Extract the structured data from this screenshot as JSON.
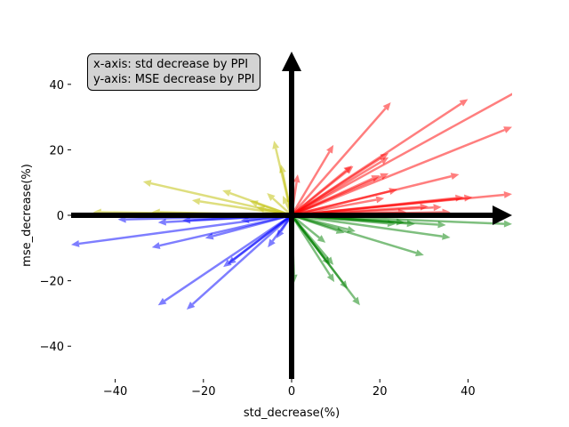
{
  "chart_data": {
    "type": "quiver",
    "xlabel": "std_decrease(%)",
    "ylabel": "mse_decrease(%)",
    "xlim": [
      -50,
      50
    ],
    "ylim": [
      -50,
      50
    ],
    "xticks": [
      -40,
      -20,
      0,
      20,
      40
    ],
    "yticks": [
      -40,
      -20,
      0,
      20,
      40
    ],
    "grid": false,
    "annotation": [
      "x-axis: std decrease by PPI",
      "y-axis: MSE decrease by PPI"
    ],
    "colors": {
      "red": "#ff0000",
      "green": "#008000",
      "yellow": "#bfbf00",
      "blue": "#0000ff",
      "axis": "#000000"
    },
    "series": [
      {
        "name": "red",
        "color": "#ff0000",
        "vectors": [
          [
            1.4,
            12.5
          ],
          [
            9.5,
            21.5
          ],
          [
            22.5,
            34.5
          ],
          [
            40,
            35.5
          ],
          [
            52,
            38.5
          ],
          [
            50,
            27
          ],
          [
            38,
            12.5
          ],
          [
            50,
            6.5
          ],
          [
            41,
            5.5
          ],
          [
            34,
            2.5
          ],
          [
            14,
            15
          ],
          [
            13.7,
            15.2
          ],
          [
            22,
            19
          ],
          [
            20,
            12.2
          ],
          [
            22,
            12.8
          ],
          [
            22,
            17.7
          ],
          [
            24,
            7.9
          ],
          [
            21,
            5.2
          ],
          [
            31,
            2.7
          ],
          [
            39,
            5.5
          ],
          [
            36,
            1
          ],
          [
            26,
            1
          ]
        ]
      },
      {
        "name": "green",
        "color": "#008000",
        "vectors": [
          [
            50,
            -2.7
          ],
          [
            35,
            -3
          ],
          [
            36,
            -6.8
          ],
          [
            30,
            -12.2
          ],
          [
            15.5,
            -27.5
          ],
          [
            12.7,
            -22.5
          ],
          [
            9.7,
            -20.4
          ],
          [
            9.5,
            -15.2
          ],
          [
            7.7,
            -8.4
          ],
          [
            14.5,
            -4.9
          ],
          [
            12,
            -5.4
          ],
          [
            0.6,
            -20.6
          ],
          [
            28,
            -2.7
          ],
          [
            23.6,
            -2.7
          ],
          [
            25.6,
            -2.2
          ],
          [
            8.7,
            -15.2
          ]
        ]
      },
      {
        "name": "yellow",
        "color": "#bfbf00",
        "vectors": [
          [
            -4,
            22.8
          ],
          [
            -33.7,
            10.3
          ],
          [
            -22.6,
            4.6
          ],
          [
            -15.7,
            7.6
          ],
          [
            -5.6,
            6.8
          ],
          [
            -2,
            6
          ],
          [
            -9.5,
            4.3
          ],
          [
            -45,
            1
          ],
          [
            -31.7,
            1
          ],
          [
            -2.4,
            15.5
          ],
          [
            -8,
            2.4
          ]
        ]
      },
      {
        "name": "blue",
        "color": "#0000ff",
        "vectors": [
          [
            -50,
            -9
          ],
          [
            -31.7,
            -9.8
          ],
          [
            -30.3,
            -27.5
          ],
          [
            -23.8,
            -28.8
          ],
          [
            -19.6,
            -7
          ],
          [
            -15.5,
            -15.8
          ],
          [
            -5.4,
            -9.8
          ],
          [
            -3.4,
            -7
          ],
          [
            -39.4,
            -1.3
          ],
          [
            -30.3,
            -2.2
          ],
          [
            -24.8,
            -1.6
          ],
          [
            -11.5,
            -1.6
          ],
          [
            -14.5,
            -15
          ]
        ]
      }
    ]
  }
}
